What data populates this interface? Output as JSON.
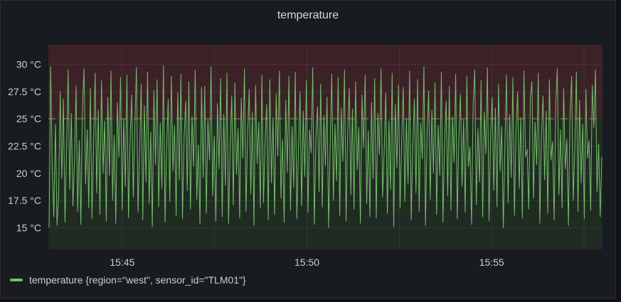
{
  "panel": {
    "title": "temperature"
  },
  "chart_data": {
    "type": "line",
    "title": "temperature",
    "xlabel": "",
    "ylabel": "",
    "x_tick_labels": [
      "15:45",
      "15:50",
      "15:55"
    ],
    "x_tick_minutes": [
      45,
      50,
      55
    ],
    "x_range_minutes": [
      43.0,
      58.0
    ],
    "y_tick_labels": [
      "15 °C",
      "17.5 °C",
      "20 °C",
      "22.5 °C",
      "25 °C",
      "27.5 °C",
      "30 °C"
    ],
    "y_ticks": [
      15,
      17.5,
      20,
      22.5,
      25,
      27.5,
      30
    ],
    "ylim": [
      13,
      31.8
    ],
    "grid": true,
    "threshold": {
      "value": 25,
      "above_color": "#3b2226",
      "below_color": "#202b22",
      "line_color": "#e0575f"
    },
    "legend_placement": "bottom-left",
    "series": [
      {
        "name": "temperature {region=\"west\", sensor_id=\"TLM01\"}",
        "color": "#73bf69",
        "values": [
          15.0,
          29.8,
          20.5,
          16.0,
          24.5,
          15.2,
          18.0,
          27.5,
          19.5,
          26.8,
          15.5,
          22.0,
          29.5,
          18.5,
          25.5,
          17.0,
          21.0,
          28.0,
          16.5,
          23.0,
          15.3,
          26.0,
          29.6,
          19.0,
          24.0,
          16.8,
          27.8,
          15.8,
          22.5,
          29.2,
          18.2,
          25.8,
          16.2,
          28.5,
          20.0,
          24.8,
          15.6,
          27.0,
          19.8,
          29.4,
          17.5,
          23.5,
          15.4,
          26.5,
          21.5,
          28.8,
          16.6,
          25.0,
          18.8,
          29.0,
          15.9,
          22.8,
          27.2,
          17.8,
          24.2,
          29.7,
          16.4,
          21.8,
          28.2,
          15.7,
          26.2,
          19.2,
          29.3,
          17.2,
          23.8,
          15.1,
          27.6,
          20.8,
          28.6,
          16.9,
          24.6,
          18.6,
          29.9,
          15.5,
          22.2,
          26.8,
          17.4,
          28.9,
          20.2,
          24.4,
          16.1,
          27.4,
          19.4,
          29.1,
          15.8,
          23.2,
          26.6,
          18.4,
          28.4,
          16.7,
          25.2,
          20.6,
          29.5,
          17.6,
          22.6,
          15.3,
          27.9,
          19.6,
          28.0,
          16.3,
          24.9,
          21.2,
          29.8,
          17.9,
          23.4,
          15.6,
          26.4,
          20.4,
          28.7,
          16.0,
          25.4,
          18.9,
          29.2,
          15.4,
          22.4,
          27.1,
          17.1,
          28.3,
          19.9,
          24.1,
          15.9,
          26.9,
          21.4,
          29.6,
          16.5,
          23.6,
          27.7,
          18.1,
          25.6,
          15.2,
          28.1,
          20.9,
          24.7,
          16.8,
          29.0,
          17.3,
          22.9,
          26.3,
          15.7,
          28.6,
          19.1,
          25.1,
          16.2,
          27.3,
          21.6,
          29.4,
          17.7,
          23.1,
          15.5,
          26.7,
          20.1,
          28.9,
          16.6,
          24.3,
          18.7,
          29.3,
          15.8,
          22.1,
          27.5,
          17.0,
          25.7,
          19.7,
          28.5,
          16.4,
          24.0,
          21.9,
          29.7,
          15.3,
          23.3,
          26.1,
          18.3,
          28.2,
          16.9,
          25.3,
          20.7,
          27.0,
          15.0,
          22.7,
          29.1,
          17.5,
          24.5,
          19.3,
          28.8,
          16.1,
          26.0,
          21.1,
          29.5,
          15.6,
          23.7,
          27.8,
          18.0,
          25.9,
          16.7,
          28.4,
          20.3,
          24.2,
          15.4,
          27.2,
          22.3,
          29.0,
          17.2,
          23.9,
          16.0,
          26.5,
          19.5,
          28.7,
          15.9,
          25.5,
          21.7,
          29.6,
          17.8,
          22.0,
          27.4,
          16.3,
          24.8,
          18.5,
          29.2,
          15.1,
          26.3,
          20.5,
          28.1,
          16.8,
          23.0,
          27.9,
          17.4,
          25.0,
          19.0,
          29.4,
          15.7,
          22.5,
          26.8,
          18.2,
          28.6,
          16.5,
          24.6,
          21.3,
          29.8,
          15.2,
          23.5,
          27.6,
          17.6,
          25.8,
          20.0,
          28.3,
          16.2,
          24.4,
          19.8,
          29.3,
          15.5,
          22.8,
          26.6,
          17.9,
          28.0,
          16.6,
          25.2,
          21.0,
          29.1,
          15.8,
          23.2,
          27.3,
          18.8,
          24.9,
          16.4,
          28.9,
          20.6,
          22.4,
          15.3,
          26.2,
          29.5,
          17.1,
          24.1,
          19.2,
          28.5,
          16.0,
          25.6,
          21.8,
          29.7,
          15.6,
          23.6,
          27.0,
          18.4,
          26.0,
          16.9,
          28.2,
          20.2,
          24.3,
          15.0,
          22.6,
          29.0,
          17.3,
          25.4,
          19.6,
          28.8,
          16.1,
          23.8,
          27.5,
          18.6,
          25.1,
          15.9,
          29.4,
          21.5,
          22.2,
          16.7,
          26.9,
          28.4,
          17.7,
          24.7,
          20.8,
          29.2,
          15.4,
          23.4,
          27.1,
          19.4,
          25.7,
          16.3,
          28.6,
          21.2,
          22.9,
          15.7,
          26.4,
          29.6,
          18.0,
          24.0,
          16.8,
          27.8,
          20.4,
          23.1,
          15.2,
          25.3,
          28.9,
          17.5,
          22.1,
          29.3,
          16.5,
          26.7,
          19.1,
          24.5,
          15.8,
          27.7,
          21.4,
          23.0,
          16.6,
          28.1,
          24.2,
          29.5,
          18.3,
          22.7,
          16.0,
          21.5
        ]
      }
    ]
  }
}
